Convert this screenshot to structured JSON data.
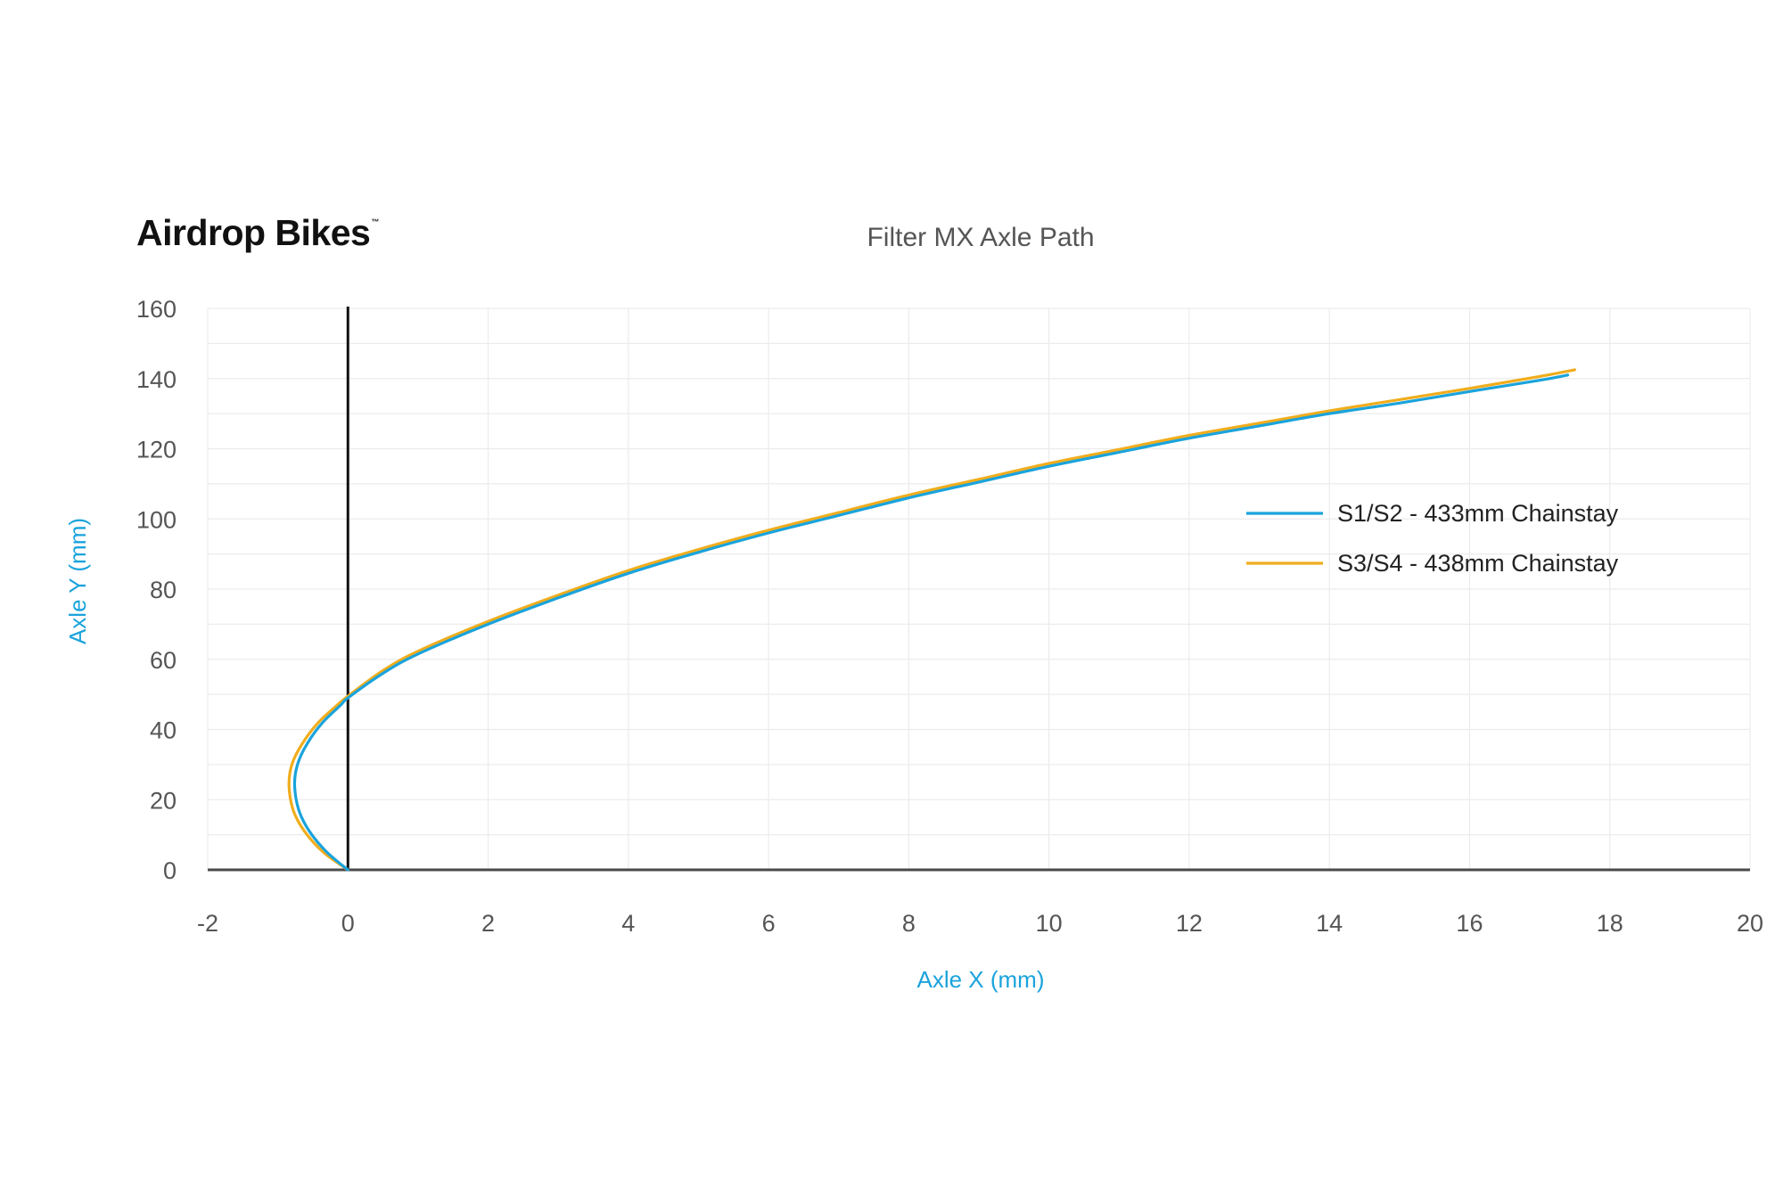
{
  "brand": {
    "name": "Airdrop Bikes",
    "trademark": "™"
  },
  "chart_data": {
    "type": "line",
    "title": "Filter MX Axle Path",
    "xlabel": "Axle X (mm)",
    "ylabel": "Axle Y (mm)",
    "xlim": [
      -2,
      20
    ],
    "ylim": [
      0,
      160
    ],
    "xticks": [
      "-2",
      "0",
      "2",
      "4",
      "6",
      "8",
      "10",
      "12",
      "14",
      "16",
      "18",
      "20"
    ],
    "yticks": [
      "0",
      "20",
      "40",
      "60",
      "80",
      "100",
      "120",
      "140",
      "160"
    ],
    "grid": true,
    "legend_position": "right",
    "series": [
      {
        "name": "S1/S2 - 433mm Chainstay",
        "color": "#1aa3dc",
        "points": [
          [
            0,
            0
          ],
          [
            -0.3,
            5
          ],
          [
            -0.55,
            11
          ],
          [
            -0.7,
            17
          ],
          [
            -0.76,
            24
          ],
          [
            -0.72,
            30
          ],
          [
            -0.58,
            36
          ],
          [
            -0.36,
            42
          ],
          [
            -0.1,
            47
          ],
          [
            0,
            49
          ],
          [
            0.5,
            56
          ],
          [
            1,
            61.5
          ],
          [
            2,
            70
          ],
          [
            3,
            77.5
          ],
          [
            4,
            84.5
          ],
          [
            5,
            90.5
          ],
          [
            6,
            96
          ],
          [
            7,
            101
          ],
          [
            8,
            106
          ],
          [
            9,
            110.5
          ],
          [
            10,
            115
          ],
          [
            11,
            119
          ],
          [
            12,
            123
          ],
          [
            13,
            126.5
          ],
          [
            14,
            130
          ],
          [
            15,
            133
          ],
          [
            16,
            136.3
          ],
          [
            17,
            139.5
          ],
          [
            17.4,
            141
          ]
        ]
      },
      {
        "name": "S3/S4 - 438mm Chainstay",
        "color": "#f0ad1c",
        "points": [
          [
            0,
            0
          ],
          [
            -0.35,
            5
          ],
          [
            -0.62,
            11
          ],
          [
            -0.78,
            17
          ],
          [
            -0.84,
            24
          ],
          [
            -0.8,
            30
          ],
          [
            -0.65,
            36
          ],
          [
            -0.42,
            42
          ],
          [
            -0.15,
            47
          ],
          [
            0,
            49.5
          ],
          [
            0.5,
            56.8
          ],
          [
            1,
            62.3
          ],
          [
            2,
            70.8
          ],
          [
            3,
            78.3
          ],
          [
            4,
            85.3
          ],
          [
            5,
            91.3
          ],
          [
            6,
            96.8
          ],
          [
            7,
            101.8
          ],
          [
            8,
            106.8
          ],
          [
            9,
            111.3
          ],
          [
            10,
            115.8
          ],
          [
            11,
            119.8
          ],
          [
            12,
            123.8
          ],
          [
            13,
            127.3
          ],
          [
            14,
            130.8
          ],
          [
            15,
            134
          ],
          [
            16,
            137.2
          ],
          [
            17,
            140.6
          ],
          [
            17.5,
            142.5
          ]
        ]
      }
    ]
  }
}
